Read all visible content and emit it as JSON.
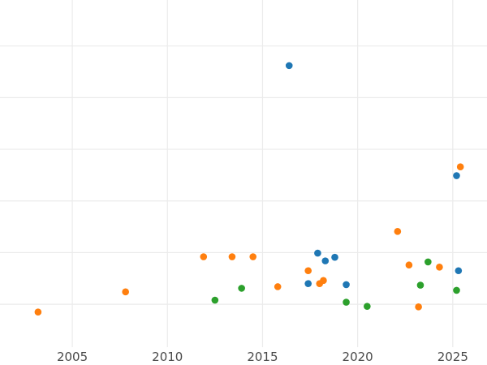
{
  "chart_data": {
    "type": "scatter",
    "title": "",
    "xlabel": "",
    "ylabel": "",
    "xlim": [
      2001.2,
      2026.8
    ],
    "ylim": [
      -8.3,
      58.9
    ],
    "x_ticks": [
      2005,
      2010,
      2015,
      2020,
      2025
    ],
    "x_tick_labels": [
      "2005",
      "2010",
      "2015",
      "2020",
      "2025"
    ],
    "y_gridlines": [
      0,
      10,
      20,
      30,
      40,
      50,
      60
    ],
    "grid": true,
    "legend": "none",
    "series": [
      {
        "color": "#1f77b4",
        "points": [
          {
            "x": 2016.4,
            "y": 46.2
          },
          {
            "x": 2017.4,
            "y": 4.0
          },
          {
            "x": 2017.9,
            "y": 9.9
          },
          {
            "x": 2018.3,
            "y": 8.4
          },
          {
            "x": 2018.8,
            "y": 9.1
          },
          {
            "x": 2019.4,
            "y": 3.8
          },
          {
            "x": 2025.2,
            "y": 24.9
          },
          {
            "x": 2025.3,
            "y": 6.5
          }
        ]
      },
      {
        "color": "#ff7f0e",
        "points": [
          {
            "x": 2003.2,
            "y": -1.5
          },
          {
            "x": 2007.8,
            "y": 2.4
          },
          {
            "x": 2011.9,
            "y": 9.2
          },
          {
            "x": 2013.4,
            "y": 9.2
          },
          {
            "x": 2014.5,
            "y": 9.2
          },
          {
            "x": 2015.8,
            "y": 3.4
          },
          {
            "x": 2017.4,
            "y": 6.5
          },
          {
            "x": 2018.0,
            "y": 4.0
          },
          {
            "x": 2018.2,
            "y": 4.6
          },
          {
            "x": 2022.1,
            "y": 14.1
          },
          {
            "x": 2022.7,
            "y": 7.6
          },
          {
            "x": 2023.2,
            "y": -0.5
          },
          {
            "x": 2024.3,
            "y": 7.2
          },
          {
            "x": 2025.4,
            "y": 26.6
          }
        ]
      },
      {
        "color": "#2ca02c",
        "points": [
          {
            "x": 2012.5,
            "y": 0.8
          },
          {
            "x": 2013.9,
            "y": 3.1
          },
          {
            "x": 2019.4,
            "y": 0.4
          },
          {
            "x": 2020.5,
            "y": -0.4
          },
          {
            "x": 2023.3,
            "y": 3.7
          },
          {
            "x": 2023.7,
            "y": 8.2
          },
          {
            "x": 2025.2,
            "y": 2.7
          }
        ]
      }
    ]
  }
}
